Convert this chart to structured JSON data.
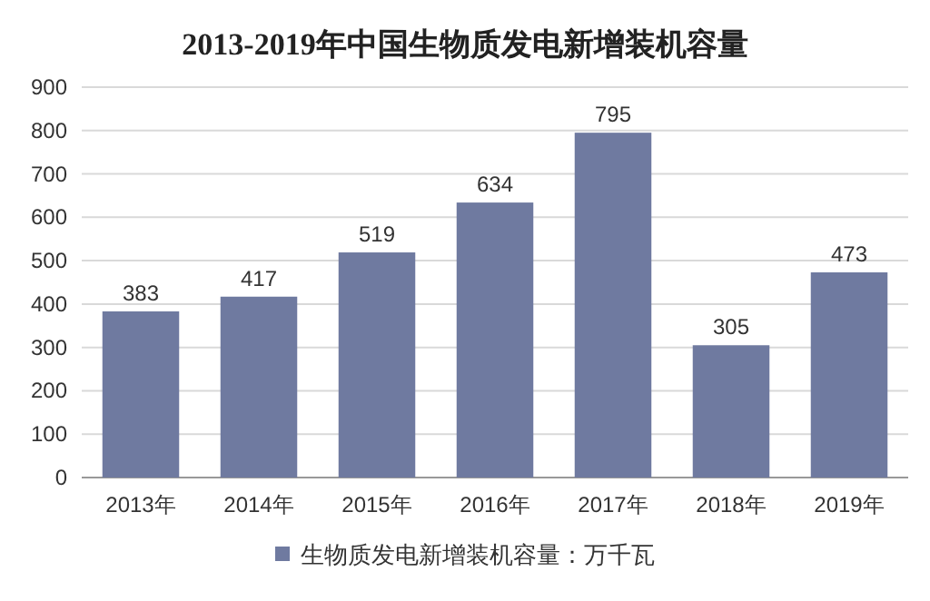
{
  "chart_data": {
    "type": "bar",
    "title": "2013-2019年中国生物质发电新增装机容量",
    "categories": [
      "2013年",
      "2014年",
      "2015年",
      "2016年",
      "2017年",
      "2018年",
      "2019年"
    ],
    "series": [
      {
        "name": "生物质发电新增装机容量：万千瓦",
        "color": "#6f7aa0",
        "values": [
          383,
          417,
          519,
          634,
          795,
          305,
          473
        ]
      }
    ],
    "ylim": [
      0,
      900
    ],
    "yticks": [
      0,
      100,
      200,
      300,
      400,
      500,
      600,
      700,
      800,
      900
    ],
    "grid": "y",
    "legend": "bottom",
    "data_labels": true
  }
}
